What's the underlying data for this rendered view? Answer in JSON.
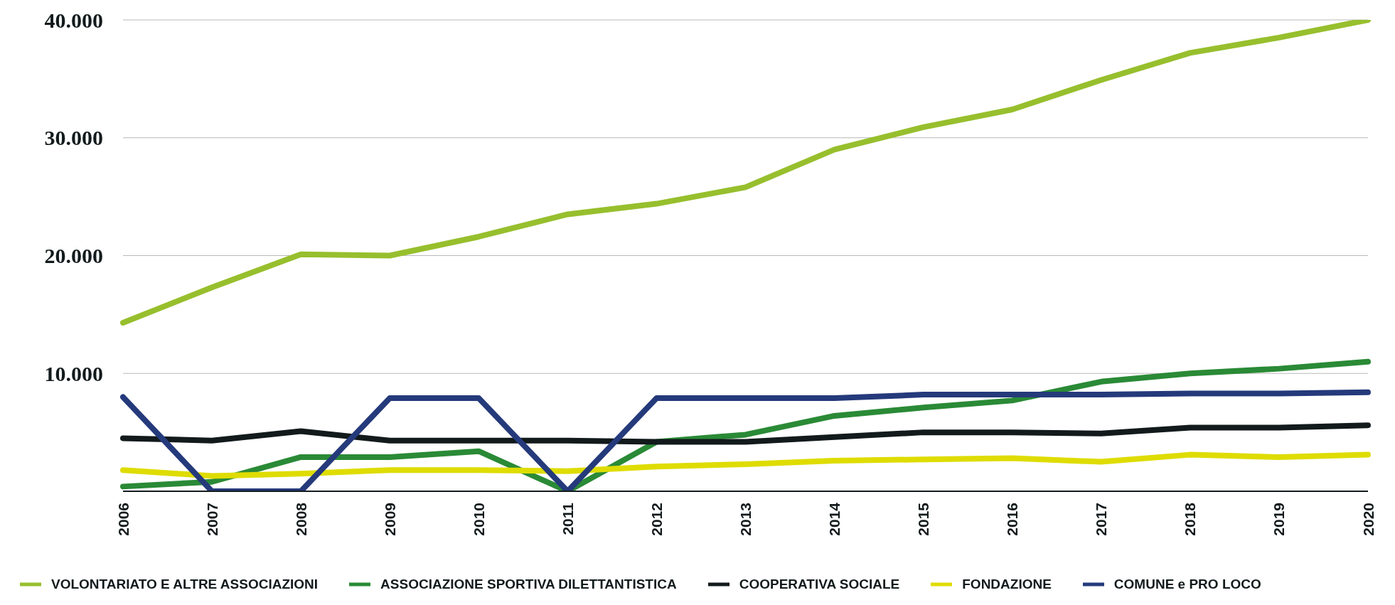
{
  "chart_data": {
    "type": "line",
    "categories": [
      "2006",
      "2007",
      "2008",
      "2009",
      "2010",
      "2011",
      "2012",
      "2013",
      "2014",
      "2015",
      "2016",
      "2017",
      "2018",
      "2019",
      "2020"
    ],
    "series": [
      {
        "name": "VOLONTARIATO E ALTRE ASSOCIAZIONI",
        "color": "#97bf2d",
        "values": [
          14300,
          17300,
          20100,
          20000,
          21600,
          23500,
          24400,
          25800,
          29000,
          30900,
          32400,
          34900,
          37200,
          38500,
          40000
        ]
      },
      {
        "name": "ASSOCIAZIONE SPORTIVA DILETTANTISTICA",
        "color": "#2a8a36",
        "values": [
          400,
          800,
          2900,
          2900,
          3400,
          0,
          4200,
          4800,
          6400,
          7100,
          7700,
          9300,
          10000,
          10400,
          11000
        ]
      },
      {
        "name": "COOPERATIVA SOCIALE",
        "color": "#121a1c",
        "values": [
          4500,
          4300,
          5100,
          4300,
          4300,
          4300,
          4200,
          4200,
          4600,
          5000,
          5000,
          4900,
          5400,
          5400,
          5600
        ]
      },
      {
        "name": "FONDAZIONE",
        "color": "#dedc00",
        "values": [
          1800,
          1300,
          1500,
          1800,
          1800,
          1700,
          2100,
          2300,
          2600,
          2700,
          2800,
          2500,
          3100,
          2900,
          3100
        ]
      },
      {
        "name": "COMUNE e PRO LOCO",
        "color": "#253a7b",
        "values": [
          8000,
          0,
          0,
          7900,
          7900,
          0,
          7900,
          7900,
          7900,
          8200,
          8200,
          8200,
          8300,
          8300,
          8400
        ]
      }
    ],
    "ylim": [
      0,
      40000
    ],
    "yticks": [
      {
        "value": 10000,
        "label": "10.000"
      },
      {
        "value": 20000,
        "label": "20.000"
      },
      {
        "value": 30000,
        "label": "30.000"
      },
      {
        "value": 40000,
        "label": "40.000"
      }
    ],
    "grid": "y",
    "legend": "bottom",
    "marker": "none",
    "line_style": "solid"
  }
}
